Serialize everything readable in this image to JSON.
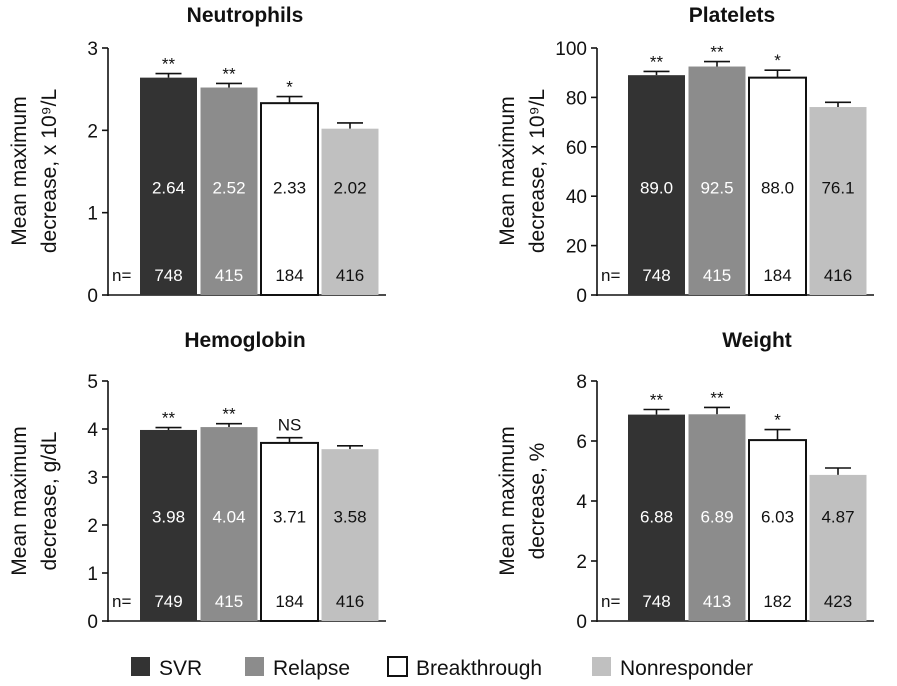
{
  "chart_data": [
    {
      "type": "bar",
      "title": "Neutrophils",
      "ylabel": [
        "Mean maximum",
        "decrease, x 10⁹/L"
      ],
      "ylim": [
        0,
        3
      ],
      "yticks": [
        0,
        1,
        2,
        3
      ],
      "n_label": "n=",
      "categories": [
        "SVR",
        "Relapse",
        "Breakthrough",
        "Nonresponder"
      ],
      "values": [
        2.64,
        2.52,
        2.33,
        2.02
      ],
      "value_labels": [
        "2.64",
        "2.52",
        "2.33",
        "2.02"
      ],
      "error_upper": [
        2.69,
        2.57,
        2.41,
        2.09
      ],
      "n": [
        "748",
        "415",
        "184",
        "416"
      ],
      "significance": [
        "**",
        "**",
        "*",
        ""
      ]
    },
    {
      "type": "bar",
      "title": "Platelets",
      "ylabel": [
        "Mean maximum",
        "decrease, x 10⁹/L"
      ],
      "ylim": [
        0,
        100
      ],
      "yticks": [
        0,
        20,
        40,
        60,
        80,
        100
      ],
      "n_label": "n=",
      "categories": [
        "SVR",
        "Relapse",
        "Breakthrough",
        "Nonresponder"
      ],
      "values": [
        89.0,
        92.5,
        88.0,
        76.1
      ],
      "value_labels": [
        "89.0",
        "92.5",
        "88.0",
        "76.1"
      ],
      "error_upper": [
        90.5,
        94.5,
        91.0,
        78.0
      ],
      "n": [
        "748",
        "415",
        "184",
        "416"
      ],
      "significance": [
        "**",
        "**",
        "*",
        ""
      ]
    },
    {
      "type": "bar",
      "title": "Hemoglobin",
      "ylabel": [
        "Mean maximum",
        "decrease, g/dL"
      ],
      "ylim": [
        0,
        5
      ],
      "yticks": [
        0,
        1,
        2,
        3,
        4,
        5
      ],
      "n_label": "n=",
      "categories": [
        "SVR",
        "Relapse",
        "Breakthrough",
        "Nonresponder"
      ],
      "values": [
        3.98,
        4.04,
        3.71,
        3.58
      ],
      "value_labels": [
        "3.98",
        "4.04",
        "3.71",
        "3.58"
      ],
      "error_upper": [
        4.03,
        4.11,
        3.82,
        3.65
      ],
      "n": [
        "749",
        "415",
        "184",
        "416"
      ],
      "significance": [
        "**",
        "**",
        "NS",
        ""
      ]
    },
    {
      "type": "bar",
      "title": "Weight",
      "ylabel": [
        "Mean maximum",
        "decrease, %"
      ],
      "ylim": [
        0,
        8
      ],
      "yticks": [
        0,
        2,
        4,
        6,
        8
      ],
      "n_label": "n=",
      "categories": [
        "SVR",
        "Relapse",
        "Breakthrough",
        "Nonresponder"
      ],
      "values": [
        6.88,
        6.89,
        6.03,
        4.87
      ],
      "value_labels": [
        "6.88",
        "6.89",
        "6.03",
        "4.87"
      ],
      "error_upper": [
        7.05,
        7.12,
        6.38,
        5.1
      ],
      "n": [
        "748",
        "413",
        "182",
        "423"
      ],
      "significance": [
        "**",
        "**",
        "*",
        ""
      ]
    }
  ],
  "legend": {
    "position": "bottom",
    "items": [
      "SVR",
      "Relapse",
      "Breakthrough",
      "Nonresponder"
    ]
  },
  "colors": {
    "SVR": "#333333",
    "Relapse": "#8c8c8c",
    "Breakthrough": "#ffffff",
    "Nonresponder": "#c0c0c0",
    "outline": "#111111"
  }
}
